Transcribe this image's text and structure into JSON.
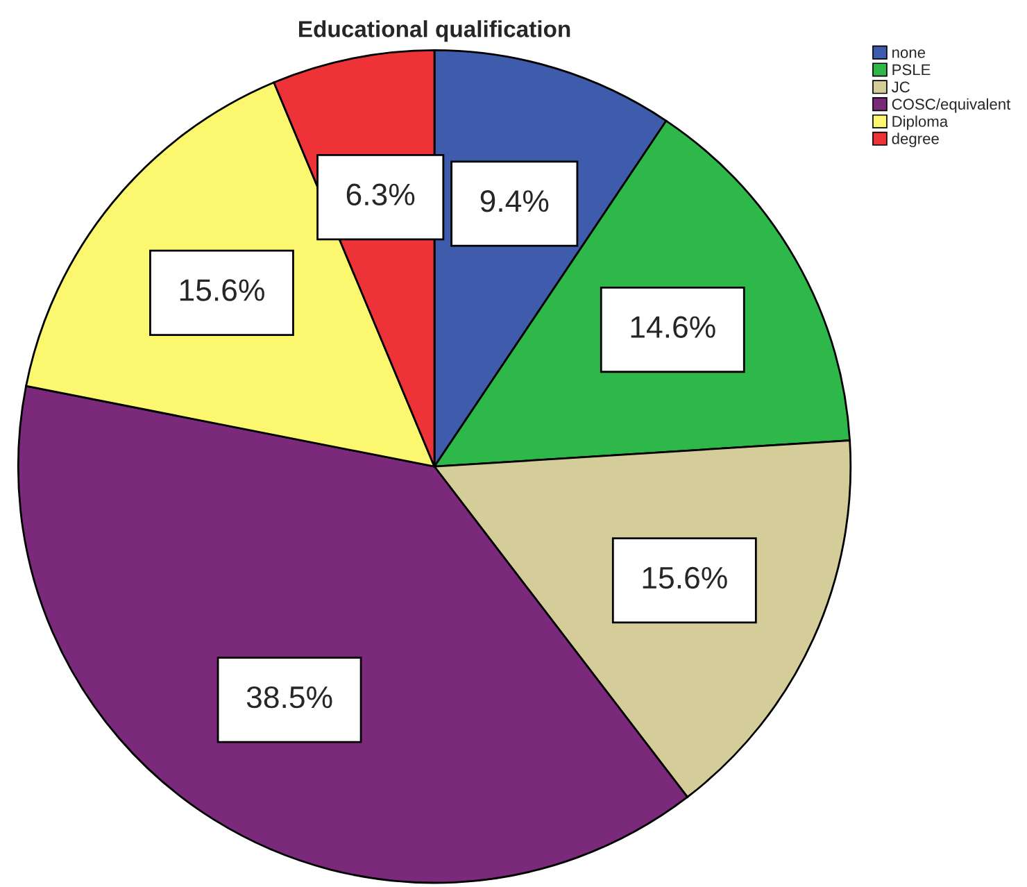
{
  "chart_data": {
    "type": "pie",
    "title": "Educational qualification",
    "categories": [
      "none",
      "PSLE",
      "JC",
      "COSC/equivalent",
      "Diploma",
      "degree"
    ],
    "values": [
      9.4,
      14.6,
      15.6,
      38.5,
      15.6,
      6.3
    ],
    "colors": [
      "#3f5bab",
      "#2fb84a",
      "#d4cd9a",
      "#7b2a7b",
      "#fbf76e",
      "#ee3338"
    ],
    "value_labels": [
      "9.4%",
      "14.6%",
      "15.6%",
      "38.5%",
      "15.6%",
      "6.3%"
    ],
    "legend": "top right"
  }
}
